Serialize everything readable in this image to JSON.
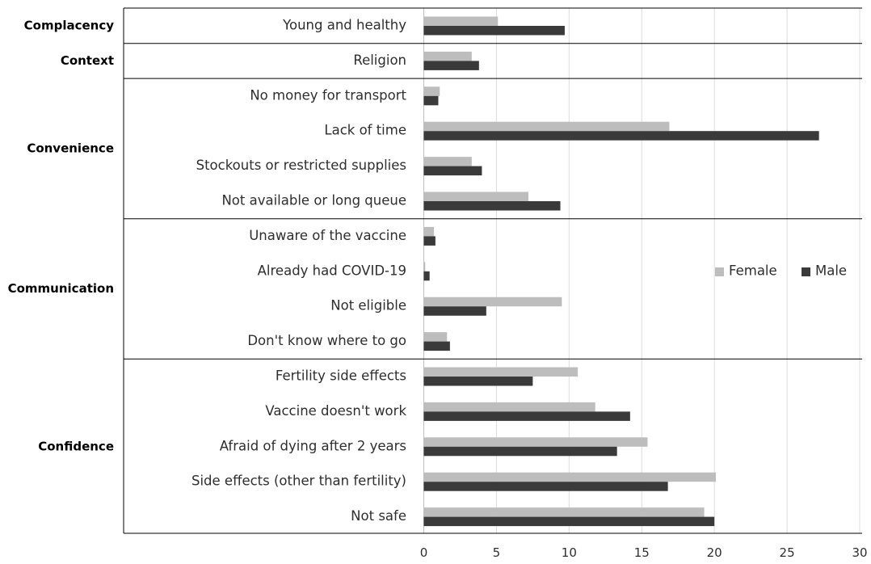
{
  "chart_data": {
    "type": "bar",
    "orientation": "horizontal",
    "title": "",
    "xlabel": "",
    "ylabel": "",
    "xlim": [
      0,
      30
    ],
    "x_ticks": [
      0,
      5,
      10,
      15,
      20,
      25,
      30
    ],
    "grid": "vertical",
    "legend_position": "right",
    "groups": [
      {
        "name": "Complacency",
        "categories": [
          "Young and healthy"
        ]
      },
      {
        "name": "Context",
        "categories": [
          "Religion"
        ]
      },
      {
        "name": "Convenience",
        "categories": [
          "No money for transport",
          "Lack of time",
          "Stockouts or restricted supplies",
          "Not available or long queue"
        ]
      },
      {
        "name": "Communication",
        "categories": [
          "Unaware of the vaccine",
          "Already had COVID-19",
          "Not eligible",
          "Don't know where to go"
        ]
      },
      {
        "name": "Confidence",
        "categories": [
          "Fertility side effects",
          "Vaccine doesn't work",
          "Afraid of dying after 2 years",
          "Side effects (other than fertility)",
          "Not safe"
        ]
      }
    ],
    "categories": [
      "Young and healthy",
      "Religion",
      "No money for transport",
      "Lack of time",
      "Stockouts or restricted supplies",
      "Not available or long queue",
      "Unaware of the vaccine",
      "Already had COVID-19",
      "Not eligible",
      "Don't know where to go",
      "Fertility side effects",
      "Vaccine doesn't work",
      "Afraid of dying after 2 years",
      "Side effects (other than fertility)",
      "Not safe"
    ],
    "series": [
      {
        "name": "Female",
        "color": "#bdbdbd",
        "values": [
          5.1,
          3.3,
          1.1,
          16.9,
          3.3,
          7.2,
          0.7,
          0.1,
          9.5,
          1.6,
          10.6,
          11.8,
          15.4,
          20.1,
          19.3
        ]
      },
      {
        "name": "Male",
        "color": "#3a3a3a",
        "values": [
          9.7,
          3.8,
          1.0,
          27.2,
          4.0,
          9.4,
          0.8,
          0.4,
          4.3,
          1.8,
          7.5,
          14.2,
          13.3,
          16.8,
          20.0
        ]
      }
    ]
  }
}
